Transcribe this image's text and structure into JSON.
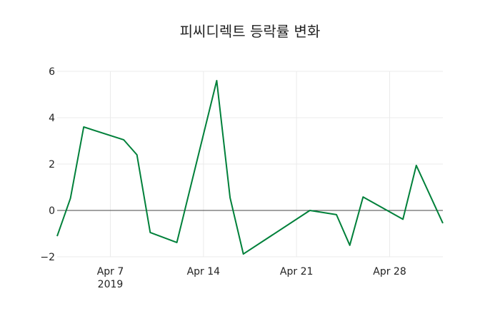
{
  "chart_data": {
    "type": "line",
    "title": "피씨디렉트 등락률 변화",
    "xlabel": "",
    "ylabel": "",
    "x": [
      "2019-04-03",
      "2019-04-04",
      "2019-04-05",
      "2019-04-08",
      "2019-04-09",
      "2019-04-10",
      "2019-04-12",
      "2019-04-15",
      "2019-04-16",
      "2019-04-17",
      "2019-04-22",
      "2019-04-24",
      "2019-04-25",
      "2019-04-26",
      "2019-04-29",
      "2019-04-30",
      "2019-05-02"
    ],
    "series": [
      {
        "name": "등락률",
        "color": "#00803a",
        "values": [
          -1.11,
          0.52,
          3.6,
          3.05,
          2.4,
          -0.95,
          -1.38,
          5.6,
          0.55,
          -1.88,
          0.0,
          -0.18,
          -1.5,
          0.58,
          -0.38,
          1.94,
          -0.55
        ]
      }
    ],
    "x_ticks": [
      {
        "date": "2019-04-07",
        "label": "Apr 7",
        "sublabel": "2019"
      },
      {
        "date": "2019-04-14",
        "label": "Apr 14",
        "sublabel": ""
      },
      {
        "date": "2019-04-21",
        "label": "Apr 21",
        "sublabel": ""
      },
      {
        "date": "2019-04-28",
        "label": "Apr 28",
        "sublabel": ""
      }
    ],
    "y_ticks": [
      6,
      4,
      2,
      0,
      -2
    ],
    "y_tick_labels": [
      "6",
      "4",
      "2",
      "0",
      "−2"
    ],
    "xlim": [
      "2019-04-03",
      "2019-05-02"
    ],
    "ylim": [
      -2,
      6
    ],
    "grid": true,
    "zero_line": true,
    "legend": false
  }
}
